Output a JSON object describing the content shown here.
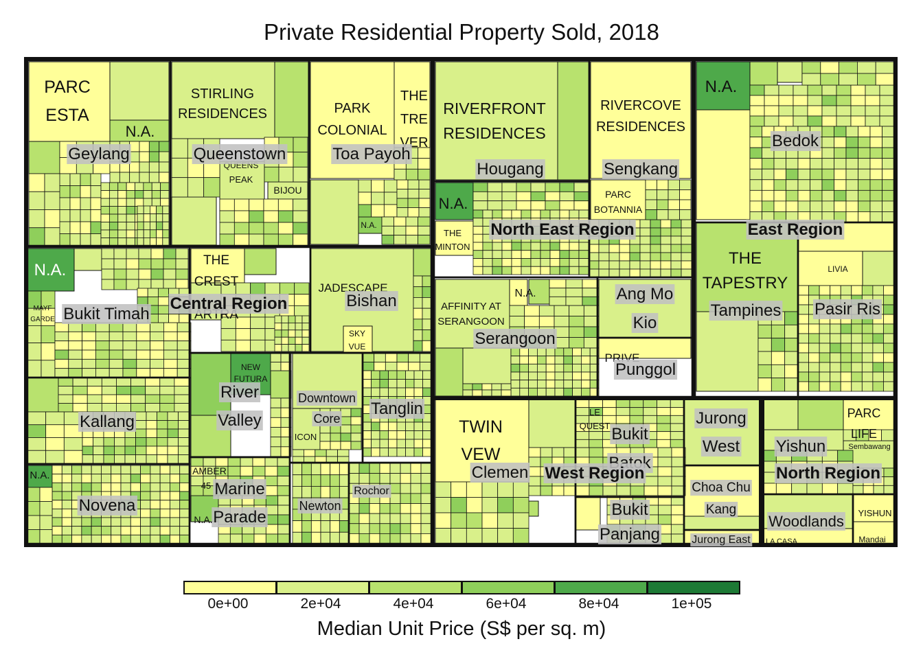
{
  "chart_data": {
    "type": "treemap",
    "title": "Private Residential Property Sold, 2018",
    "color_variable": "Median Unit Price (S$ per sq. m)",
    "legend": {
      "title": "Median Unit Price (S$ per sq. m)",
      "breaks": [
        "0e+00",
        "2e+04",
        "4e+04",
        "6e+04",
        "8e+04",
        "1e+05"
      ],
      "colors": [
        "#ffff99",
        "#d9f08a",
        "#b8e26e",
        "#8fcf5b",
        "#4ea94a",
        "#1d7a35"
      ]
    },
    "regions": [
      "Central Region",
      "North East Region",
      "East Region",
      "West Region",
      "North Region"
    ],
    "planning_areas": [
      "Geylang",
      "Queenstown",
      "Toa Payoh",
      "Bukit Timah",
      "Bishan",
      "Kallang",
      "River Valley",
      "Downtown Core",
      "Tanglin",
      "Novena",
      "Marine Parade",
      "Newton",
      "Rochor",
      "Hougang",
      "Sengkang",
      "Serangoon",
      "Ang Mo Kio",
      "Punggol",
      "Bedok",
      "Tampines",
      "Pasir Ris",
      "Clementi",
      "Bukit Batok",
      "Jurong West",
      "Choa Chu Kang",
      "Bukit Panjang",
      "Jurong East",
      "Yishun",
      "Woodlands"
    ],
    "projects": [
      "PARC ESTA",
      "N.A.",
      "STIRLING RESIDENCES",
      "QUEENS PEAK",
      "BIJOU",
      "PARK COLONIAL",
      "THE TRE VER",
      "MAYF GARDE",
      "THE CREST",
      "ARTRA",
      "JADESCAPE",
      "SKY VUE",
      "NEW FUTURA",
      "ICON",
      "AMBER 45",
      "RIVERFRONT RESIDENCES",
      "RIVERCOVE RESIDENCES",
      "PARC BOTANNIA",
      "THE MINTON",
      "AFFINITY AT SERANGOON",
      "PRIVE",
      "THE TAPESTRY",
      "LIVIA",
      "TWIN VEW",
      "LE QUEST",
      "PARC LIFE",
      "LA CASA",
      "YISHUN",
      "Sembawang",
      "Mandai"
    ]
  },
  "labels": {
    "regions": {
      "central": "Central Region",
      "north_east": "North East Region",
      "east": "East Region",
      "west": "West Region",
      "north": "North Region"
    },
    "areas": {
      "geylang": "Geylang",
      "queenstown": "Queenstown",
      "toa_payoh": "Toa Payoh",
      "bukit_timah": "Bukit Timah",
      "bishan": "Bishan",
      "kallang": "Kallang",
      "river_valley_1": "River",
      "river_valley_2": "Valley",
      "downtown_1": "Downtown",
      "downtown_2": "Core",
      "tanglin": "Tanglin",
      "novena": "Novena",
      "marine_parade_1": "Marine",
      "marine_parade_2": "Parade",
      "newton": "Newton",
      "rochor": "Rochor",
      "hougang": "Hougang",
      "sengkang": "Sengkang",
      "serangoon": "Serangoon",
      "ang_mo_kio_1": "Ang Mo",
      "ang_mo_kio_2": "Kio",
      "punggol": "Punggol",
      "bedok": "Bedok",
      "tampines": "Tampines",
      "pasir_ris": "Pasir Ris",
      "clementi": "Clemen",
      "bukit_batok_1": "Bukit",
      "bukit_batok_2": "Batok",
      "jurong_west_1": "Jurong",
      "jurong_west_2": "West",
      "choa_chu_kang_1": "Choa Chu",
      "choa_chu_kang_2": "Kang",
      "bukit_panjang_1": "Bukit",
      "bukit_panjang_2": "Panjang",
      "jurong_east": "Jurong East",
      "yishun": "Yishun",
      "woodlands": "Woodlands"
    },
    "projects": {
      "parc_esta_1": "PARC",
      "parc_esta_2": "ESTA",
      "na_geylang": "N.A.",
      "stirling_1": "STIRLING",
      "stirling_2": "RESIDENCES",
      "queens_1": "QUEENS",
      "queens_2": "PEAK",
      "bijou": "BIJOU",
      "park_colonial_1": "PARK",
      "park_colonial_2": "COLONIAL",
      "tre_1": "THE",
      "tre_2": "TRE",
      "tre_3": "VER",
      "na_toapayoh": "N.A.",
      "na_bt": "N.A.",
      "mayf_1": "MAYF",
      "mayf_2": "GARDE",
      "crest_1": "THE",
      "crest_2": "CREST",
      "artra": "ARTRA",
      "jadescape": "JADESCAPE",
      "skyvue_1": "SKY",
      "skyvue_2": "VUE",
      "new_futura_1": "NEW",
      "new_futura_2": "FUTURA",
      "icon": "ICON",
      "na_novena": "N.A.",
      "amber_1": "AMBER",
      "amber_2": "45",
      "na_marine": "N.A.",
      "riverfront_1": "RIVERFRONT",
      "riverfront_2": "RESIDENCES",
      "rivercove_1": "RIVERCOVE",
      "rivercove_2": "RESIDENCES",
      "na_hougang": "N.A.",
      "parc_botannia_1": "PARC",
      "parc_botannia_2": "BOTANNIA",
      "minton_1": "THE",
      "minton_2": "MINTON",
      "affinity_1": "AFFINITY AT",
      "affinity_2": "SERANGOON",
      "na_serangoon": "N.A.",
      "prive": "PRIVE",
      "na_bedok": "N.A.",
      "tapestry_1": "THE",
      "tapestry_2": "TAPESTRY",
      "livia": "LIVIA",
      "twin_vew_1": "TWIN",
      "twin_vew_2": "VEW",
      "le_quest_1": "LE",
      "le_quest_2": "QUEST",
      "parc_life_1": "PARC",
      "parc_life_2": "LIFE",
      "sembawang": "Sembawang",
      "yishun_small": "YISHUN",
      "la_casa": "LA CASA",
      "mandai": "Mandai"
    }
  }
}
